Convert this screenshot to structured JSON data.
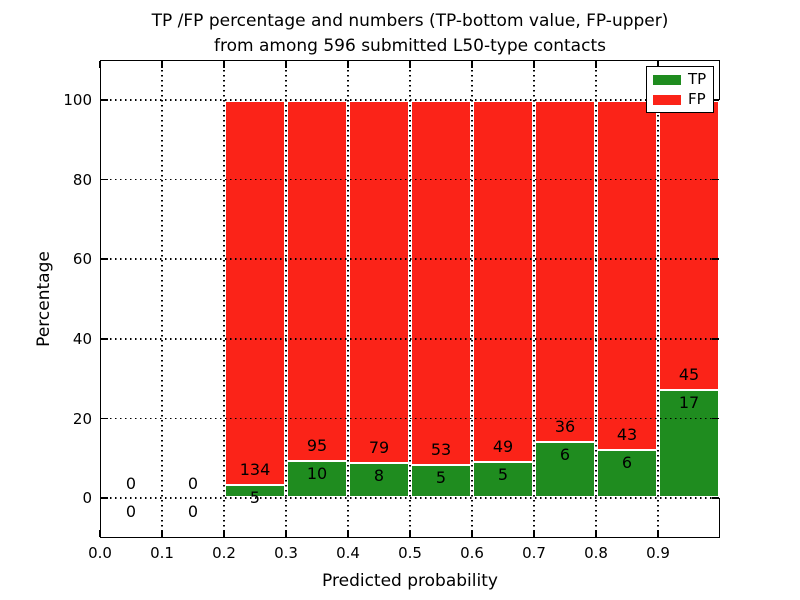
{
  "figure": {
    "title_line1": "TP /FP percentage and numbers (TP-bottom value, FP-upper)",
    "title_line2": "from among 596 submitted L50-type contacts",
    "background": "#ffffff"
  },
  "axes": {
    "xlabel": "Predicted probability",
    "ylabel": "Percentage",
    "xtick_labels": [
      "0.0",
      "0.1",
      "0.2",
      "0.3",
      "0.4",
      "0.5",
      "0.6",
      "0.7",
      "0.8",
      "0.9"
    ],
    "ytick_labels": [
      "0",
      "20",
      "40",
      "60",
      "80",
      "100"
    ],
    "xlim": [
      0.0,
      1.0
    ],
    "ylim": [
      -10,
      110
    ],
    "grid_style": "dotted",
    "grid_color": "#000000"
  },
  "legend": {
    "position": "upper-right",
    "items": [
      {
        "label": "TP",
        "color": "#1f8c1f"
      },
      {
        "label": "FP",
        "color": "#fb2318"
      }
    ]
  },
  "chart_data": {
    "type": "bar",
    "stacked": true,
    "normalization": "each bin scaled to 100 percent, TP bottom / FP top",
    "total_contacts": 596,
    "bin_width": 0.1,
    "colors": {
      "tp": "#1f8c1f",
      "fp": "#fb2318",
      "bar_edge": "#ffffff"
    },
    "bins": [
      {
        "start": 0.0,
        "end": 0.1,
        "tp": 0,
        "fp": 0
      },
      {
        "start": 0.1,
        "end": 0.2,
        "tp": 0,
        "fp": 0
      },
      {
        "start": 0.2,
        "end": 0.3,
        "tp": 5,
        "fp": 134
      },
      {
        "start": 0.3,
        "end": 0.4,
        "tp": 10,
        "fp": 95
      },
      {
        "start": 0.4,
        "end": 0.5,
        "tp": 8,
        "fp": 79
      },
      {
        "start": 0.5,
        "end": 0.6,
        "tp": 5,
        "fp": 53
      },
      {
        "start": 0.6,
        "end": 0.7,
        "tp": 5,
        "fp": 49
      },
      {
        "start": 0.7,
        "end": 0.8,
        "tp": 6,
        "fp": 36
      },
      {
        "start": 0.8,
        "end": 0.9,
        "tp": 6,
        "fp": 43
      },
      {
        "start": 0.9,
        "end": 1.0,
        "tp": 17,
        "fp": 45
      }
    ]
  }
}
